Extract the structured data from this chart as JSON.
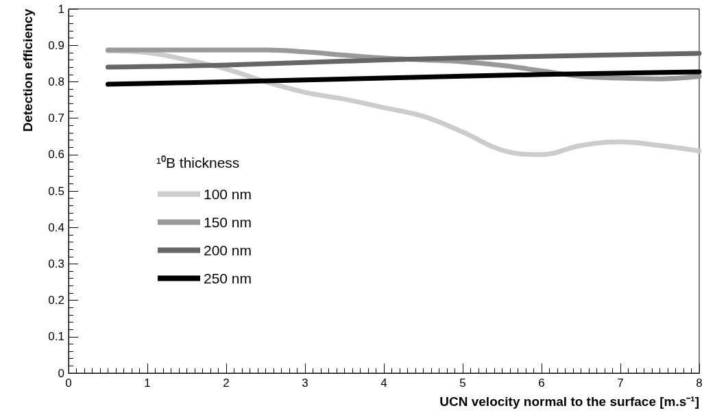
{
  "chart_data": {
    "type": "line",
    "xlabel": "UCN velocity normal to the surface [m.s⁻¹]",
    "ylabel": "Detection efficiency",
    "legend_title": "¹⁰B thickness",
    "legend": "left",
    "grid": false,
    "xlim": [
      0,
      8
    ],
    "xticks": [
      0,
      1,
      2,
      3,
      4,
      5,
      6,
      7,
      8
    ],
    "ylim": [
      0,
      1
    ],
    "yticks": [
      0,
      0.1,
      0.2,
      0.3,
      0.4,
      0.5,
      0.6,
      0.7,
      0.8,
      0.9,
      1
    ],
    "series": [
      {
        "name": "100 nm",
        "color": "#cccccc",
        "x": [
          0.5,
          1,
          1.5,
          2,
          2.5,
          3,
          3.5,
          4,
          4.5,
          5,
          5.5,
          6,
          6.5,
          7,
          7.5,
          8
        ],
        "values": [
          0.885,
          0.88,
          0.86,
          0.835,
          0.8,
          0.771,
          0.752,
          0.729,
          0.705,
          0.662,
          0.612,
          0.6,
          0.625,
          0.635,
          0.625,
          0.61
        ]
      },
      {
        "name": "150 nm",
        "color": "#999999",
        "x": [
          0.5,
          1,
          2,
          2.5,
          3,
          3.5,
          4,
          4.5,
          5,
          5.5,
          6,
          6.5,
          7,
          7.5,
          8
        ],
        "values": [
          0.887,
          0.887,
          0.887,
          0.887,
          0.882,
          0.873,
          0.865,
          0.86,
          0.855,
          0.845,
          0.83,
          0.815,
          0.81,
          0.808,
          0.815
        ]
      },
      {
        "name": "200 nm",
        "color": "#666666",
        "x": [
          0.5,
          2,
          4,
          6,
          8
        ],
        "values": [
          0.84,
          0.846,
          0.86,
          0.87,
          0.878
        ]
      },
      {
        "name": "250 nm",
        "color": "#000000",
        "x": [
          0.5,
          2,
          4,
          6,
          8
        ],
        "values": [
          0.793,
          0.8,
          0.81,
          0.82,
          0.827
        ]
      }
    ]
  }
}
